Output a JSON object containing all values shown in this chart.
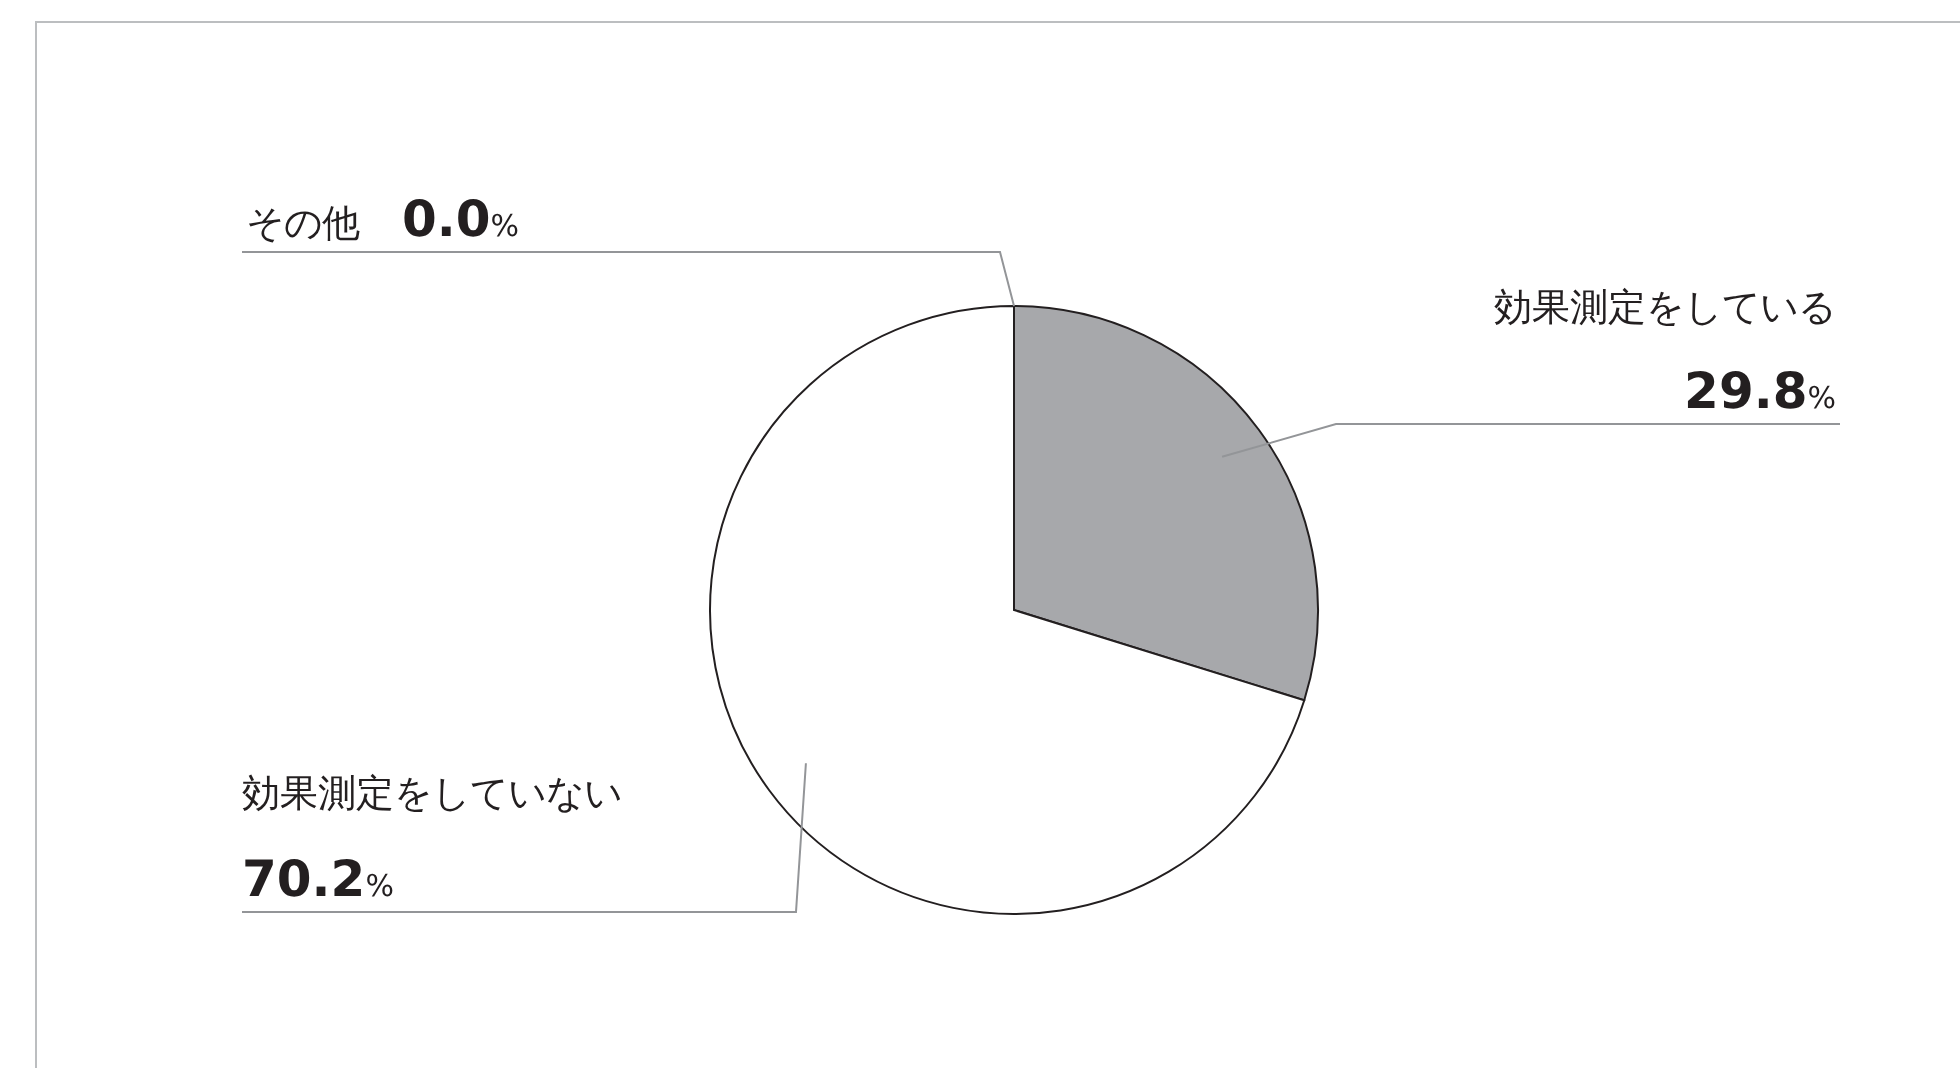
{
  "chart_data": {
    "type": "pie",
    "categories": [
      "効果測定をしている",
      "効果測定をしていない",
      "その他"
    ],
    "values": [
      29.8,
      70.2,
      0.0
    ],
    "colors": [
      "#a7a8ab",
      "#ffffff",
      "#ffffff"
    ],
    "value_labels": [
      "29.8%",
      "70.2%",
      "0.0%"
    ]
  }
}
